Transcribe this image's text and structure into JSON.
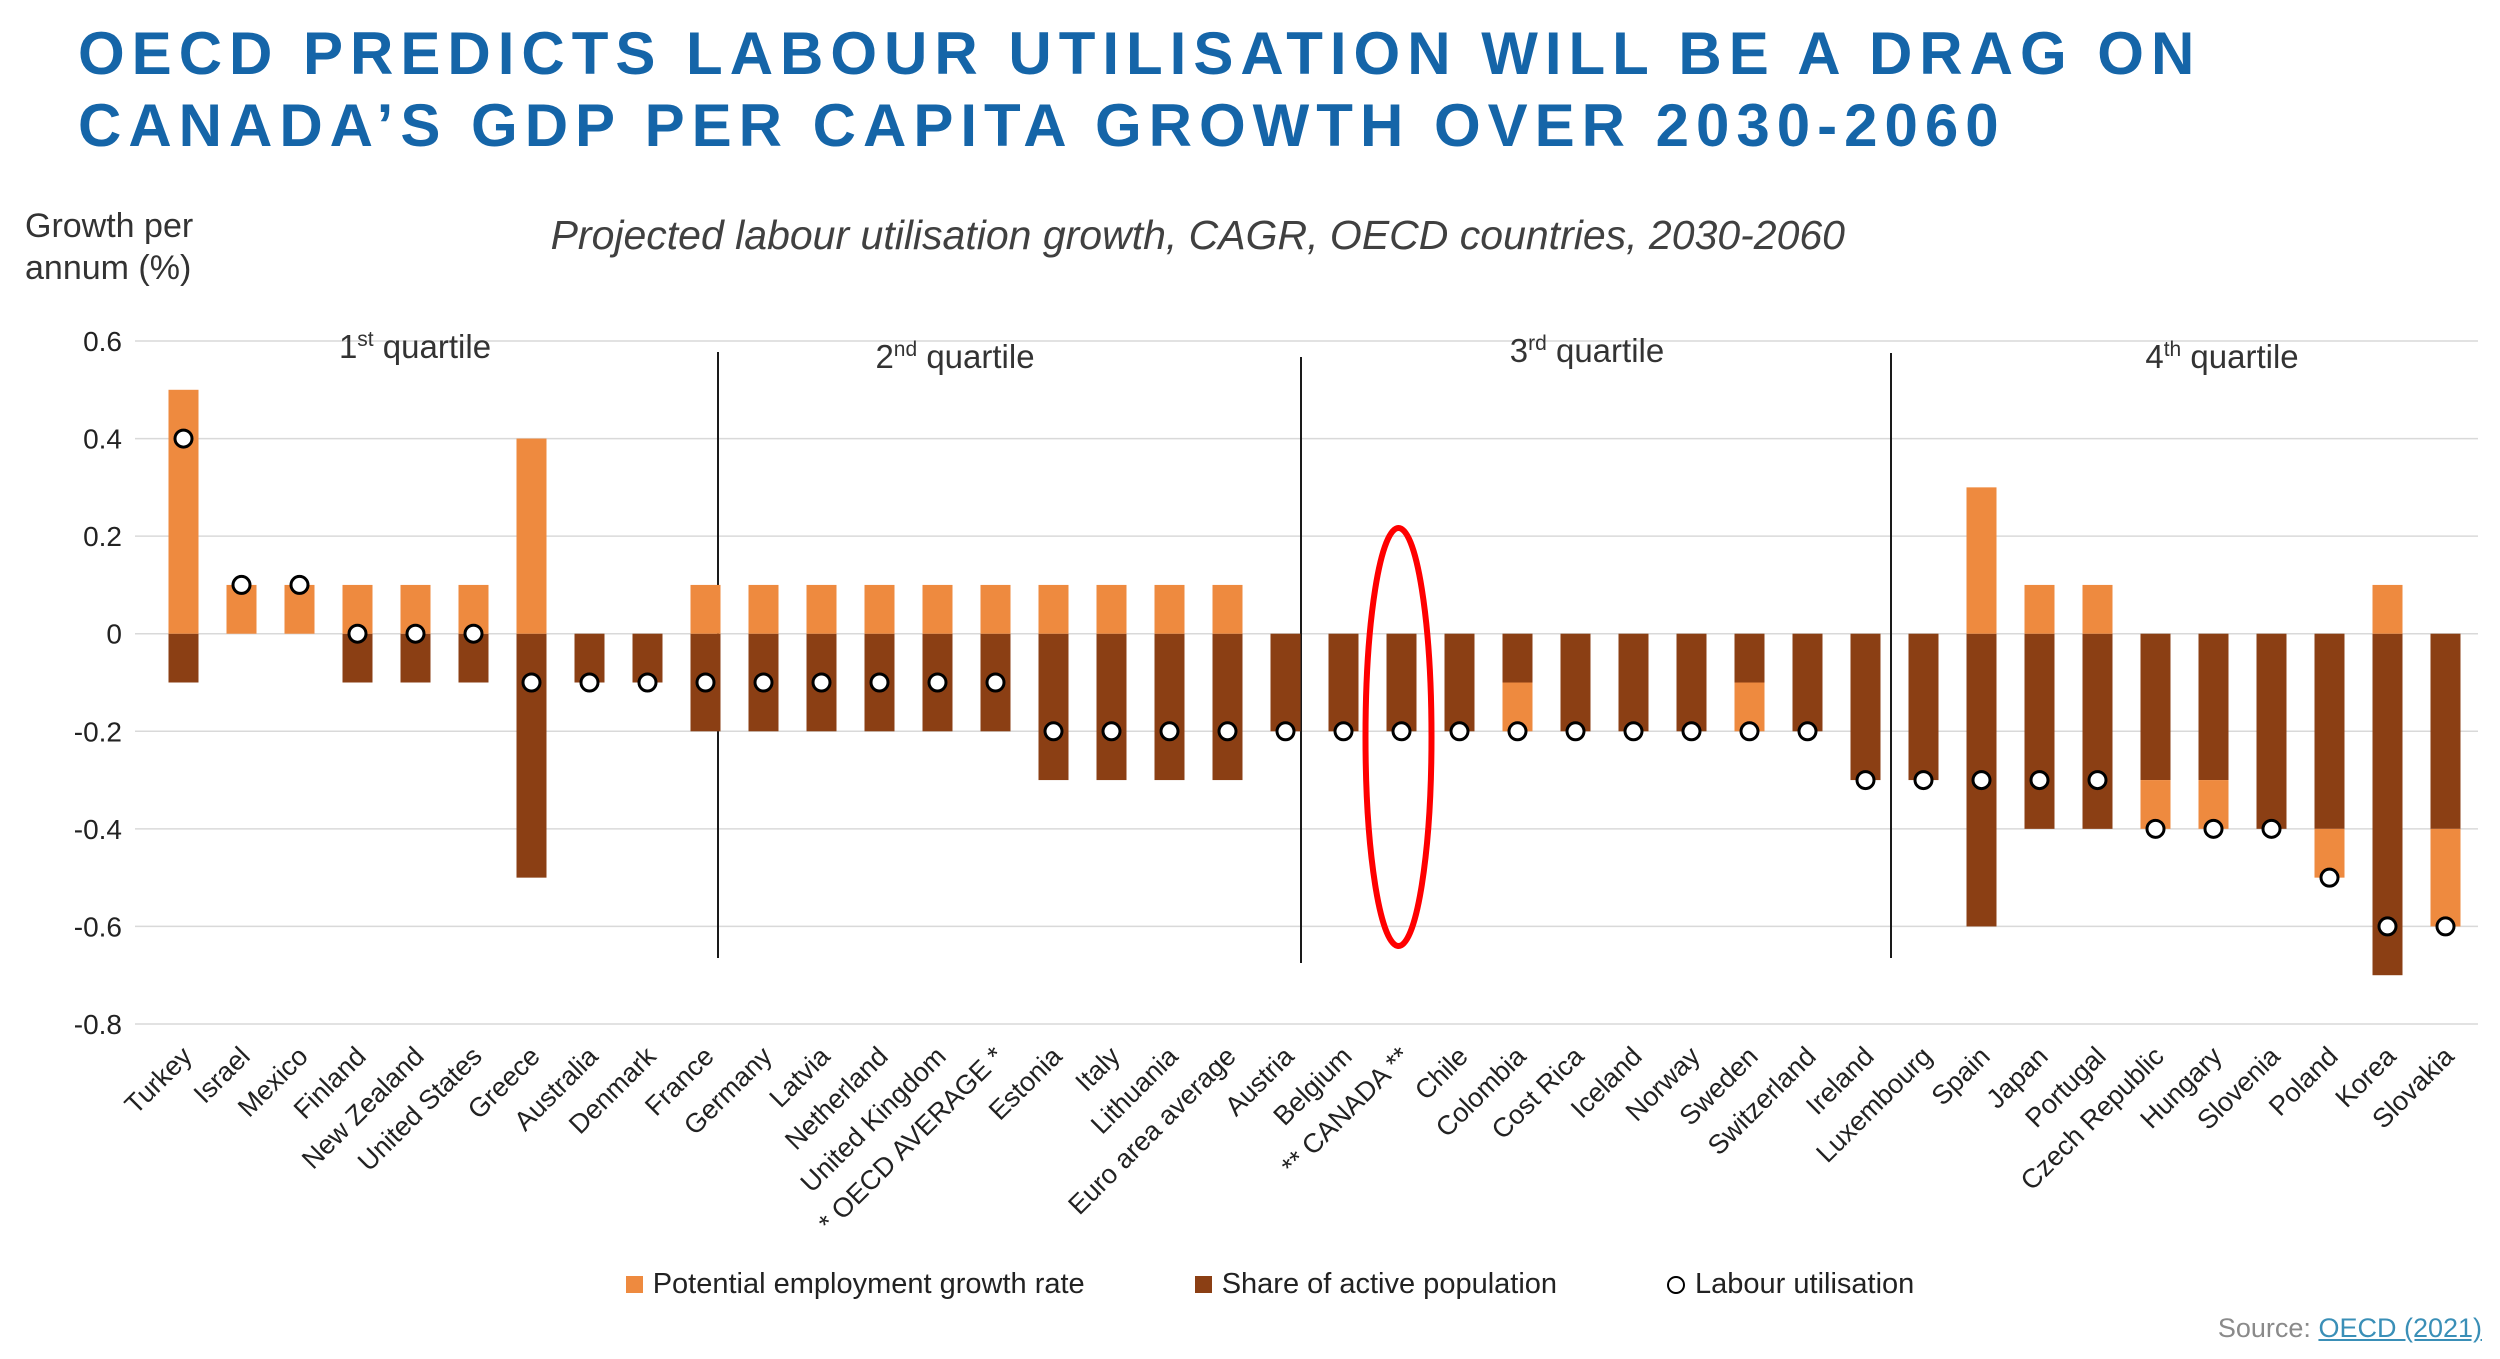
{
  "header": {
    "title_line1": "OECD PREDICTS LABOUR UTILISATION WILL BE A DRAG ON",
    "title_line2": "CANADA’S GDP PER CAPITA GROWTH OVER 2030-2060"
  },
  "axis": {
    "ylabel_line1": "Growth per",
    "ylabel_line2": "annum (%)"
  },
  "source": {
    "prefix": "Source: ",
    "link": "OECD (2021)"
  },
  "colors": {
    "potential": "#ee8a3f",
    "share": "#8b3f14",
    "title": "#1565a8",
    "highlight": "#ff0000"
  },
  "chart_data": {
    "type": "bar",
    "stacked": true,
    "title": "Projected labour utilisation growth, CAGR, OECD countries, 2030-2060",
    "ylabel": "Growth per annum (%)",
    "ylim": [
      -0.8,
      0.6
    ],
    "yticks": [
      0.6,
      0.4,
      0.2,
      0,
      -0.2,
      -0.4,
      -0.6,
      -0.8
    ],
    "ytick_labels": [
      "0.6",
      "0.4",
      "0.2",
      "0",
      "-0.2",
      "-0.4",
      "-0.6",
      "-0.8"
    ],
    "grid": true,
    "legend_position": "bottom",
    "categories": [
      "Turkey",
      "Israel",
      "Mexico",
      "Finland",
      "New Zealand",
      "United States",
      "Greece",
      "Australia",
      "Denmark",
      "France",
      "Germany",
      "Latvia",
      "Netherland",
      "United Kingdom",
      "* OECD AVERAGE *",
      "Estonia",
      "Italy",
      "Lithuania",
      "Euro area average",
      "Austria",
      "Belgium",
      "** CANADA **",
      "Chile",
      "Colombia",
      "Cost Rica",
      "Iceland",
      "Norway",
      "Sweden",
      "Switzerland",
      "Ireland",
      "Luxembourg",
      "Spain",
      "Japan",
      "Portugal",
      "Czech Republic",
      "Hungary",
      "Slovenia",
      "Poland",
      "Korea",
      "Slovakia"
    ],
    "series": [
      {
        "name": "Potential employment growth rate",
        "type": "bar",
        "values": [
          0.5,
          0.1,
          0.1,
          0.1,
          0.1,
          0.1,
          0.4,
          0,
          0,
          0.1,
          0.1,
          0.1,
          0.1,
          0.1,
          0.1,
          0.1,
          0.1,
          0.1,
          0.1,
          0,
          0,
          0,
          0,
          -0.1,
          0,
          0,
          0,
          -0.1,
          0,
          0,
          0,
          0.3,
          0.1,
          0.1,
          -0.1,
          -0.1,
          0,
          -0.1,
          0.1,
          -0.2
        ]
      },
      {
        "name": "Share of active population",
        "type": "bar",
        "values": [
          -0.1,
          0,
          0,
          -0.1,
          -0.1,
          -0.1,
          -0.5,
          -0.1,
          -0.1,
          -0.2,
          -0.2,
          -0.2,
          -0.2,
          -0.2,
          -0.2,
          -0.3,
          -0.3,
          -0.3,
          -0.3,
          -0.2,
          -0.2,
          -0.2,
          -0.2,
          -0.1,
          -0.2,
          -0.2,
          -0.2,
          -0.1,
          -0.2,
          -0.3,
          -0.3,
          -0.6,
          -0.4,
          -0.4,
          -0.3,
          -0.3,
          -0.4,
          -0.4,
          -0.7,
          -0.4
        ]
      },
      {
        "name": "Labour utilisation",
        "type": "point",
        "values": [
          0.4,
          0.1,
          0.1,
          0,
          0,
          0,
          -0.1,
          -0.1,
          -0.1,
          -0.1,
          -0.1,
          -0.1,
          -0.1,
          -0.1,
          -0.1,
          -0.2,
          -0.2,
          -0.2,
          -0.2,
          -0.2,
          -0.2,
          -0.2,
          -0.2,
          -0.2,
          -0.2,
          -0.2,
          -0.2,
          -0.2,
          -0.2,
          -0.3,
          -0.3,
          -0.3,
          -0.3,
          -0.3,
          -0.4,
          -0.4,
          -0.4,
          -0.5,
          -0.6,
          -0.6
        ]
      }
    ],
    "annotations": {
      "quartiles": [
        {
          "base": "1",
          "sup": "st",
          "text": " quartile"
        },
        {
          "base": "2",
          "sup": "nd",
          "text": " quartile"
        },
        {
          "base": "3",
          "sup": "rd",
          "text": " quartile"
        },
        {
          "base": "4",
          "sup": "th",
          "text": " quartile"
        }
      ],
      "highlighted_category": "** CANADA **"
    }
  }
}
